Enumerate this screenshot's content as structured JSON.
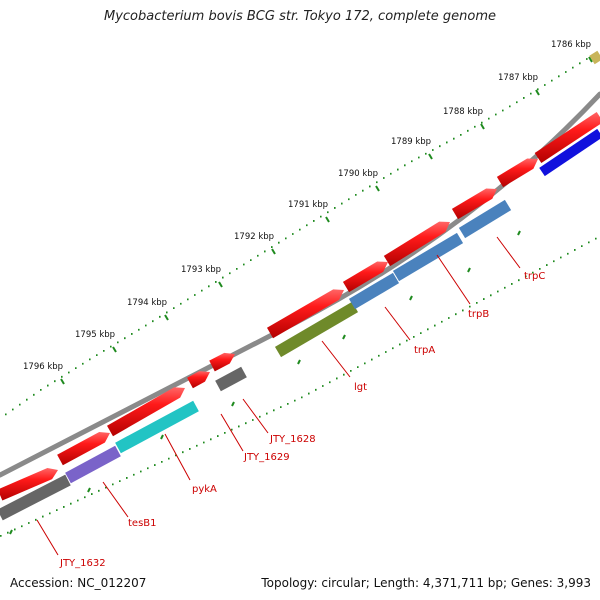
{
  "title": "Mycobacterium bovis BCG str. Tokyo 172, complete genome",
  "accession_label": "Accession: NC_012207",
  "summary_label": "Topology: circular; Length: 4,371,711 bp; Genes: 3,993",
  "ruler": {
    "ticks": [
      "1786 kbp",
      "1787 kbp",
      "1788 kbp",
      "1789 kbp",
      "1790 kbp",
      "1791 kbp",
      "1792 kbp",
      "1793 kbp",
      "1794 kbp",
      "1795 kbp",
      "1796 kbp"
    ]
  },
  "gene_labels": [
    "trpC",
    "trpB",
    "trpA",
    "lgt",
    "JTY_1628",
    "JTY_1629",
    "pykA",
    "tesB1",
    "JTY_1632"
  ],
  "colors": {
    "backbone": "#8a8a8a",
    "gene_arrow": "#ee1111",
    "ruler_dots": "#1f8a1f",
    "label": "#cc0000"
  }
}
